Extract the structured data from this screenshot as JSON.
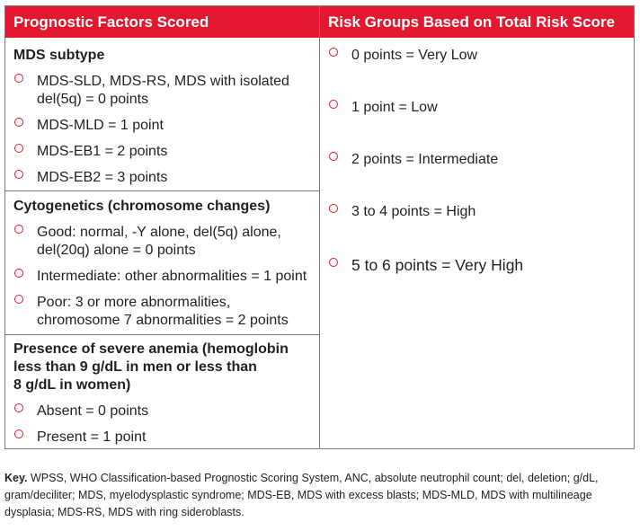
{
  "headers": {
    "left": "Prognostic Factors Scored",
    "right": "Risk Groups Based on Total Risk Score"
  },
  "sections": [
    {
      "title": "MDS subtype",
      "items": [
        [
          "MDS-SLD, MDS-RS, MDS with isolated",
          "del(5q) = 0 points"
        ],
        [
          "MDS-MLD = 1 point"
        ],
        [
          "MDS-EB1 = 2 points"
        ],
        [
          "MDS-EB2 = 3  points"
        ]
      ]
    },
    {
      "title": "Cytogenetics (chromosome changes)",
      "items": [
        [
          "Good: normal, -Y alone, del(5q) alone,",
          "del(20q) alone = 0 points"
        ],
        [
          "Intermediate: other abnormalities = 1 point"
        ],
        [
          "Poor: 3 or more abnormalities,",
          "chromosome 7 abnormalities = 2 points"
        ]
      ]
    },
    {
      "title_lines": [
        "Presence of severe anemia (hemoglobin",
        "less than 9 g/dL in men or less than",
        "8 g/dL in women)"
      ],
      "items": [
        [
          "Absent = 0 points"
        ],
        [
          "Present = 1 point"
        ]
      ]
    }
  ],
  "risk_groups": [
    "0 points = Very Low",
    "1 point = Low",
    "2 points = Intermediate",
    "3 to 4 points = High",
    "5 to 6 points = Very High"
  ],
  "key": {
    "label": "Key.",
    "text": " WPSS, WHO Classification-based Prognostic Scoring System, ANC, absolute neutrophil count; del, deletion; g/dL, gram/deciliter; MDS, myelodysplastic syndrome; MDS-EB, MDS with excess blasts; MDS-MLD, MDS with multilineage dysplasia; MDS-RS, MDS with ring sideroblasts."
  },
  "colors": {
    "accent": "#e3172d",
    "border": "#7a7a7a",
    "text": "#231f20"
  }
}
